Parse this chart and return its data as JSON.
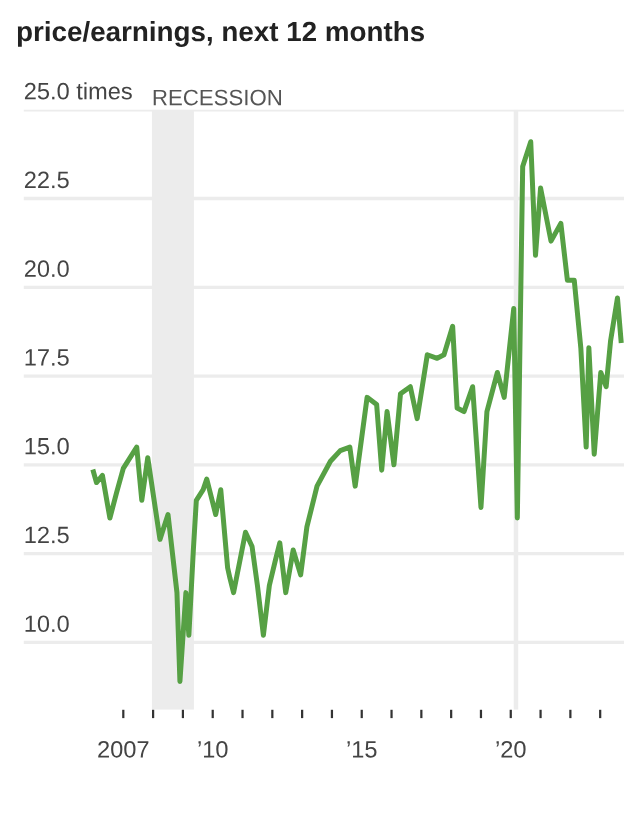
{
  "chart_data": {
    "type": "line",
    "title": "price/earnings, next 12 months",
    "x": [
      2006.0,
      2006.1,
      2006.3,
      2006.55,
      2006.77,
      2007.0,
      2007.45,
      2007.62,
      2007.82,
      2008.23,
      2008.5,
      2008.8,
      2008.9,
      2009.1,
      2009.2,
      2009.35,
      2009.45,
      2009.68,
      2009.8,
      2010.1,
      2010.27,
      2010.5,
      2010.58,
      2010.7,
      2011.1,
      2011.32,
      2011.5,
      2011.7,
      2011.9,
      2012.1,
      2012.25,
      2012.45,
      2012.7,
      2012.95,
      2013.16,
      2013.5,
      2013.95,
      2014.28,
      2014.6,
      2014.78,
      2015.18,
      2015.5,
      2015.67,
      2015.85,
      2016.08,
      2016.3,
      2016.63,
      2016.86,
      2017.2,
      2017.53,
      2017.76,
      2018.05,
      2018.2,
      2018.43,
      2018.72,
      2019.0,
      2019.2,
      2019.55,
      2019.78,
      2020.1,
      2020.22,
      2020.4,
      2020.67,
      2020.83,
      2021.0,
      2021.35,
      2021.68,
      2021.9,
      2022.13,
      2022.35,
      2022.53,
      2022.62,
      2022.8,
      2023.02,
      2023.2,
      2023.35,
      2023.58,
      2023.7
    ],
    "series": [
      {
        "color": "#56a044",
        "values": [
          14.8,
          14.5,
          14.7,
          13.5,
          14.2,
          14.9,
          15.5,
          14.0,
          15.2,
          12.9,
          13.6,
          11.4,
          8.9,
          11.4,
          10.2,
          12.6,
          14.0,
          14.3,
          14.6,
          13.6,
          14.3,
          12.1,
          11.8,
          11.4,
          13.1,
          12.7,
          11.6,
          10.2,
          11.6,
          12.3,
          12.8,
          11.4,
          12.6,
          11.9,
          13.25,
          14.4,
          15.1,
          15.4,
          15.5,
          14.4,
          16.9,
          16.7,
          14.85,
          16.5,
          15.0,
          17.0,
          17.2,
          16.3,
          18.1,
          18.0,
          18.1,
          18.9,
          16.6,
          16.5,
          17.2,
          13.8,
          16.5,
          17.6,
          16.9,
          19.4,
          13.5,
          23.4,
          24.1,
          20.9,
          22.8,
          21.3,
          21.8,
          20.2,
          20.2,
          18.3,
          15.5,
          18.3,
          15.3,
          17.6,
          17.2,
          18.5,
          19.7,
          18.5
        ]
      }
    ],
    "xlim": [
      2003.66,
      2023.8
    ],
    "xticks": [
      {
        "value": 2007,
        "label": "2007"
      },
      {
        "value": 2008,
        "label": null
      },
      {
        "value": 2009,
        "label": null
      },
      {
        "value": 2010,
        "label": "’10"
      },
      {
        "value": 2011,
        "label": null
      },
      {
        "value": 2012,
        "label": null
      },
      {
        "value": 2013,
        "label": null
      },
      {
        "value": 2014,
        "label": null
      },
      {
        "value": 2015,
        "label": "’15"
      },
      {
        "value": 2016,
        "label": null
      },
      {
        "value": 2017,
        "label": null
      },
      {
        "value": 2018,
        "label": null
      },
      {
        "value": 2019,
        "label": null
      },
      {
        "value": 2020,
        "label": "’20"
      },
      {
        "value": 2021,
        "label": null
      },
      {
        "value": 2022,
        "label": null
      },
      {
        "value": 2023,
        "label": null
      }
    ],
    "ylim": [
      8.1,
      25.0
    ],
    "yticks": [
      {
        "value": 10.0,
        "label": "10.0"
      },
      {
        "value": 12.5,
        "label": "12.5"
      },
      {
        "value": 15.0,
        "label": "15.0"
      },
      {
        "value": 17.5,
        "label": "17.5"
      },
      {
        "value": 20.0,
        "label": "20.0"
      },
      {
        "value": 22.5,
        "label": "22.5"
      },
      {
        "value": 25.0,
        "label": "25.0 times"
      }
    ],
    "bands": [
      {
        "axis": "x",
        "from": 2007.96,
        "to": 2009.37,
        "label": "RECESSION",
        "color": "#ececec"
      },
      {
        "axis": "x",
        "from": 2020.1,
        "to": 2020.25,
        "color": "#ececec"
      }
    ],
    "grid": "y",
    "line_style": "solid",
    "marker": "none"
  }
}
